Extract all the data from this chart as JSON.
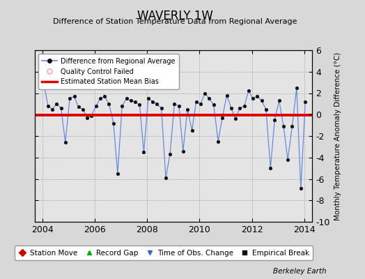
{
  "title": "WAVERLY 1W",
  "subtitle": "Difference of Station Temperature Data from Regional Average",
  "ylabel": "Monthly Temperature Anomaly Difference (°C)",
  "xlabel_bottom": "Berkeley Earth",
  "bg_color": "#d8d8d8",
  "plot_bg_color": "#e4e4e4",
  "bias_line_y": -0.05,
  "bias_line_color": "#dd0000",
  "line_color": "#6688dd",
  "marker_color": "#111111",
  "ylim": [
    -10,
    6
  ],
  "xlim": [
    2003.7,
    2014.3
  ],
  "yticks": [
    -10,
    -8,
    -6,
    -4,
    -2,
    0,
    2,
    4,
    6
  ],
  "xticks": [
    2004,
    2006,
    2008,
    2010,
    2012,
    2014
  ],
  "times": [
    2004.04,
    2004.21,
    2004.37,
    2004.54,
    2004.71,
    2004.87,
    2005.04,
    2005.21,
    2005.37,
    2005.54,
    2005.71,
    2005.87,
    2006.04,
    2006.21,
    2006.37,
    2006.54,
    2006.71,
    2006.87,
    2007.04,
    2007.21,
    2007.37,
    2007.54,
    2007.71,
    2007.87,
    2008.04,
    2008.21,
    2008.37,
    2008.54,
    2008.71,
    2008.87,
    2009.04,
    2009.21,
    2009.37,
    2009.54,
    2009.71,
    2009.87,
    2010.04,
    2010.21,
    2010.37,
    2010.54,
    2010.71,
    2010.87,
    2011.04,
    2011.21,
    2011.37,
    2011.54,
    2011.71,
    2011.87,
    2012.04,
    2012.21,
    2012.37,
    2012.54,
    2012.71,
    2012.87,
    2013.04,
    2013.21,
    2013.37,
    2013.54,
    2013.71,
    2013.87,
    2014.04
  ],
  "values": [
    3.0,
    0.8,
    0.5,
    1.0,
    0.6,
    -2.6,
    1.5,
    1.7,
    0.7,
    0.5,
    -0.3,
    -0.1,
    0.8,
    1.5,
    1.7,
    1.0,
    -0.8,
    -5.5,
    0.8,
    1.5,
    1.3,
    1.2,
    0.9,
    -3.5,
    1.5,
    1.2,
    1.0,
    0.6,
    -5.9,
    -3.7,
    1.0,
    0.8,
    -3.4,
    0.5,
    -1.5,
    1.2,
    1.0,
    2.0,
    1.5,
    0.9,
    -2.5,
    -0.3,
    1.8,
    0.6,
    -0.4,
    0.6,
    0.8,
    2.2,
    1.5,
    1.7,
    1.3,
    0.5,
    -5.0,
    -0.5,
    1.3,
    -1.1,
    -4.2,
    -1.1,
    2.5,
    -6.9,
    1.2
  ],
  "legend2_items": [
    {
      "label": "Station Move",
      "color": "#cc0000",
      "marker": "D"
    },
    {
      "label": "Record Gap",
      "color": "#00aa00",
      "marker": "^"
    },
    {
      "label": "Time of Obs. Change",
      "color": "#3366cc",
      "marker": "v"
    },
    {
      "label": "Empirical Break",
      "color": "#111111",
      "marker": "s"
    }
  ]
}
